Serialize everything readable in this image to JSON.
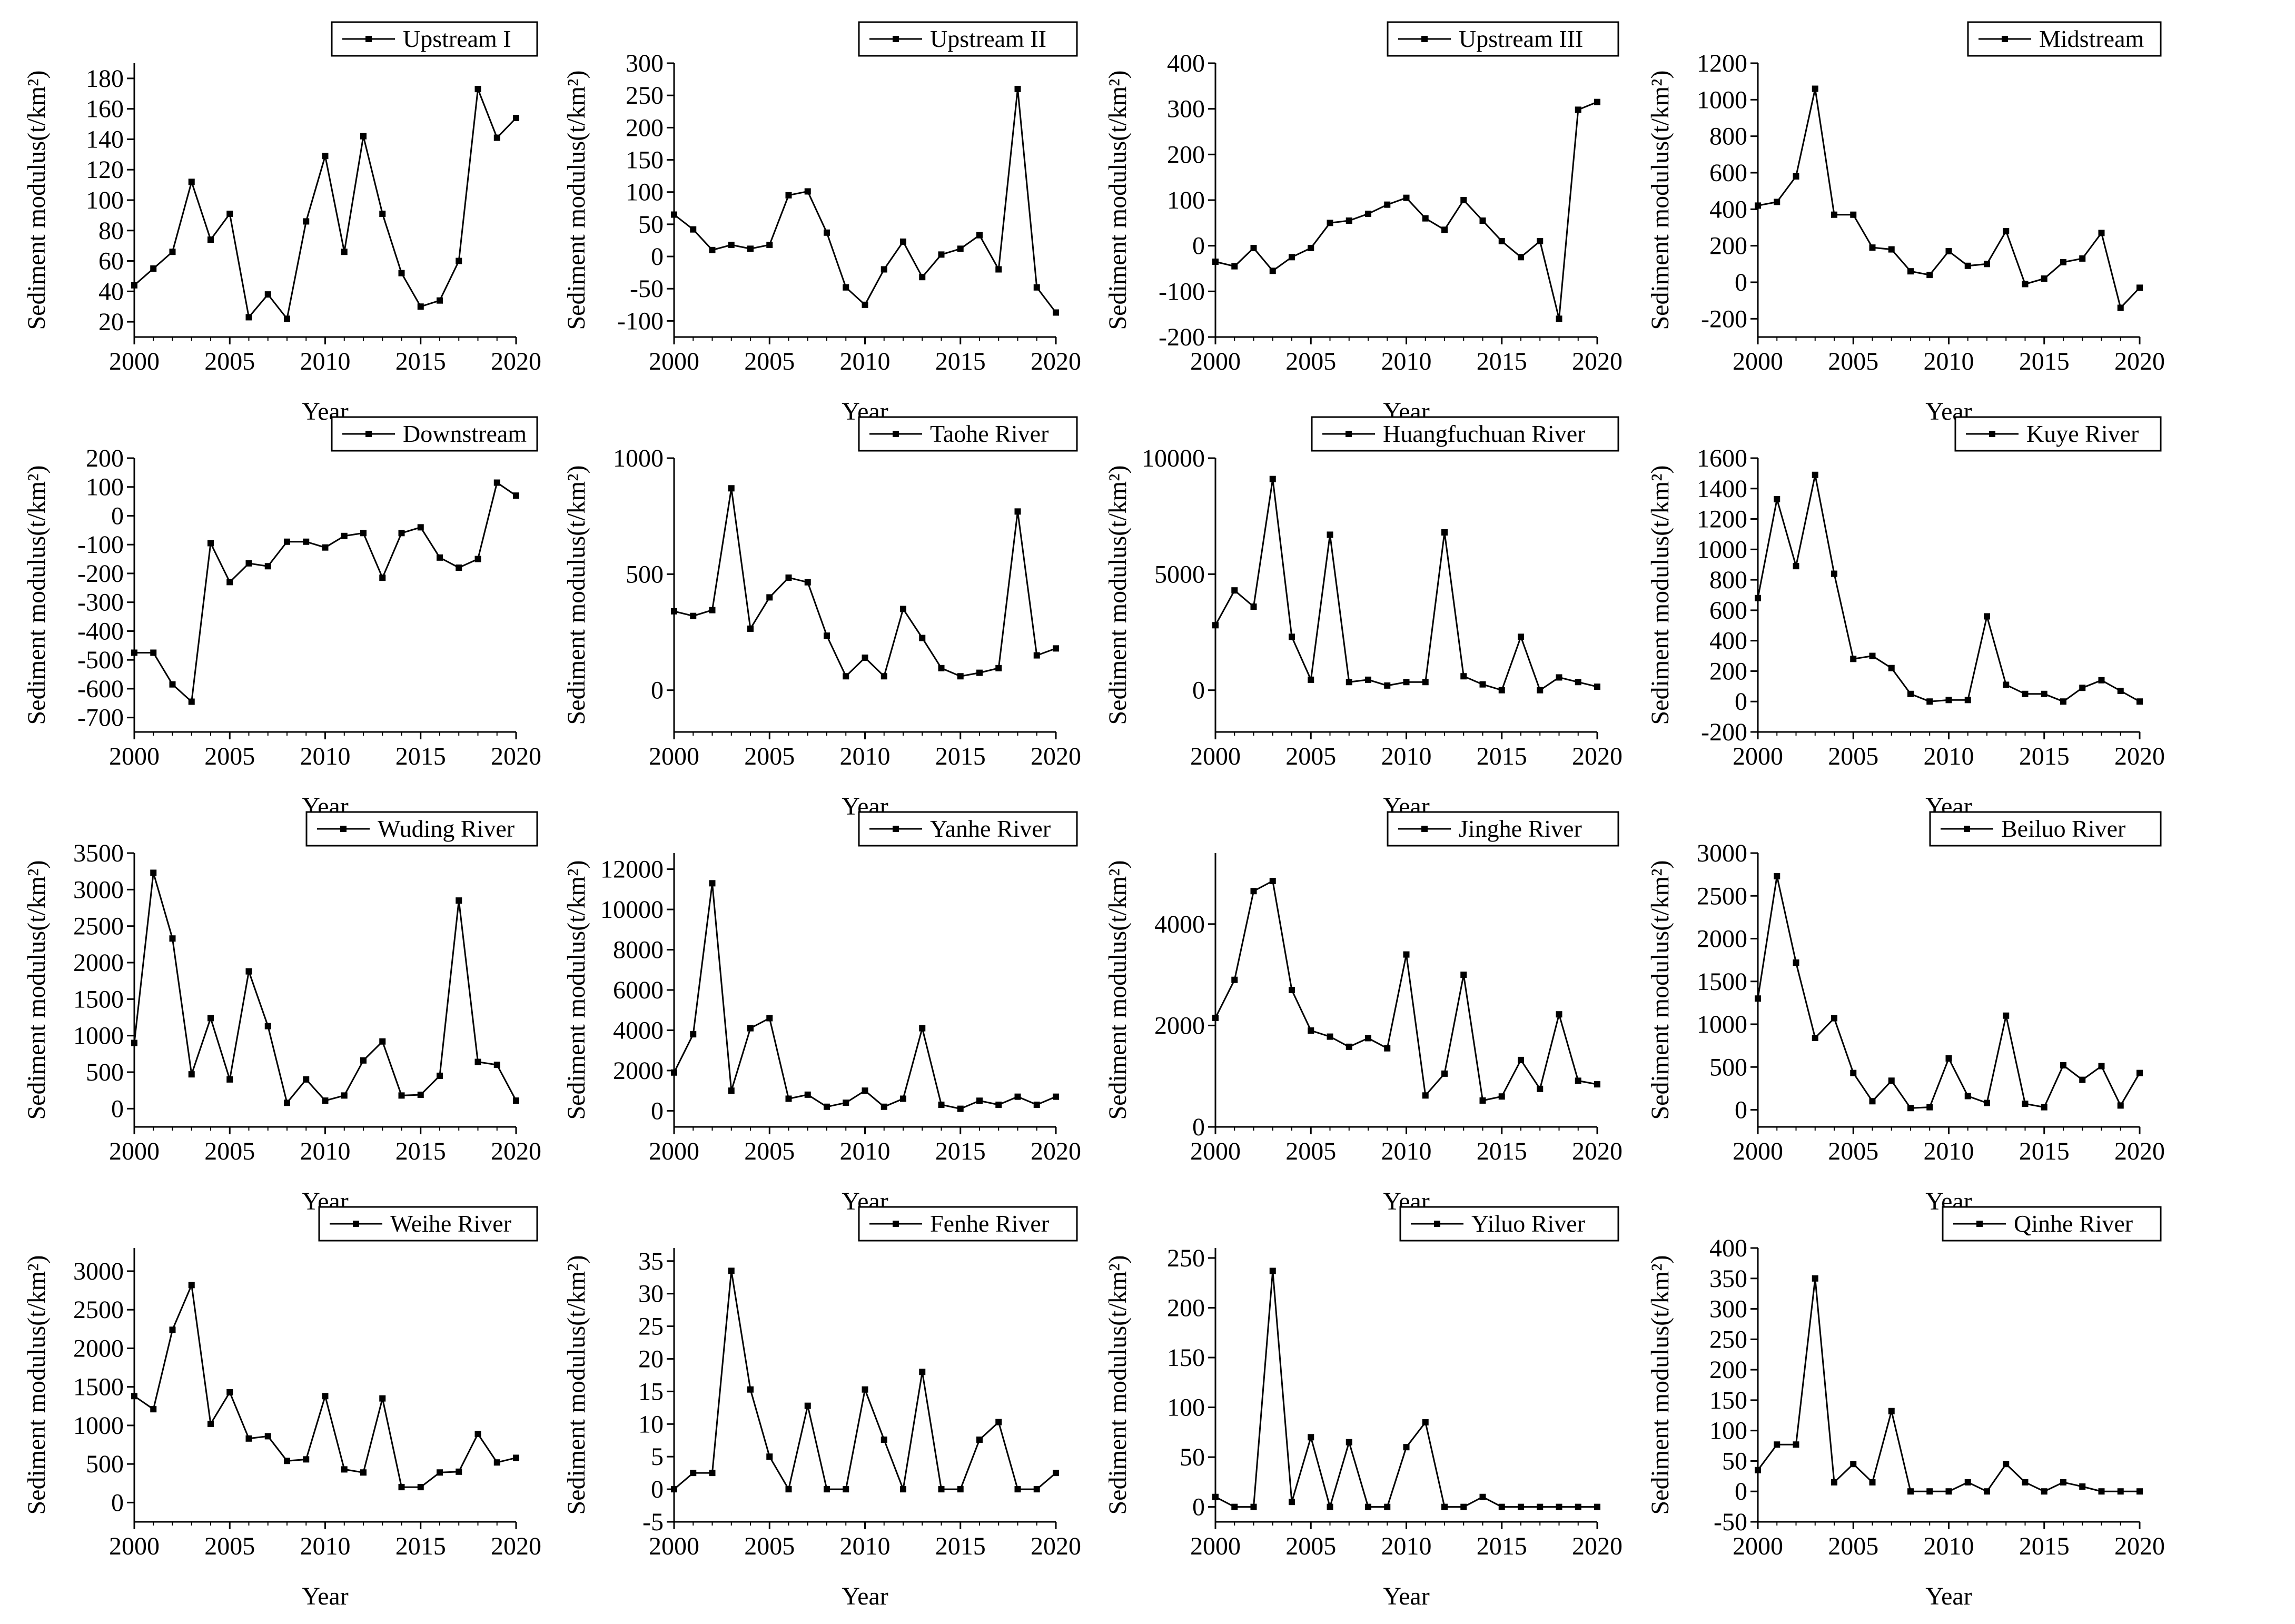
{
  "chart_data": [
    {
      "type": "line",
      "title": "Upstream I",
      "legend": "Upstream I",
      "xlabel": "Year",
      "ylabel": "Sediment modulus(t/km²)",
      "xlim": [
        2000,
        2020
      ],
      "xticks": [
        2000,
        2005,
        2010,
        2015,
        2020
      ],
      "ylim": [
        10,
        190
      ],
      "yticks": [
        20,
        40,
        60,
        80,
        100,
        120,
        140,
        160,
        180
      ],
      "x": [
        2000,
        2001,
        2002,
        2003,
        2004,
        2005,
        2006,
        2007,
        2008,
        2009,
        2010,
        2011,
        2012,
        2013,
        2014,
        2015,
        2016,
        2017,
        2018,
        2019,
        2020
      ],
      "values": [
        44,
        55,
        66,
        112,
        74,
        91,
        23,
        38,
        22,
        86,
        129,
        66,
        142,
        91,
        52,
        30,
        34,
        60,
        173,
        141,
        154
      ]
    },
    {
      "type": "line",
      "title": "Upstream II",
      "legend": "Upstream II",
      "xlabel": "Year",
      "ylabel": "Sediment modulus(t/km²)",
      "xlim": [
        2000,
        2020
      ],
      "xticks": [
        2000,
        2005,
        2010,
        2015,
        2020
      ],
      "ylim": [
        -125,
        300
      ],
      "yticks": [
        -100,
        -50,
        0,
        50,
        100,
        150,
        200,
        250,
        300
      ],
      "x": [
        2000,
        2001,
        2002,
        2003,
        2004,
        2005,
        2006,
        2007,
        2008,
        2009,
        2010,
        2011,
        2012,
        2013,
        2014,
        2015,
        2016,
        2017,
        2018,
        2019,
        2020
      ],
      "values": [
        65,
        42,
        10,
        18,
        12,
        18,
        95,
        101,
        37,
        -48,
        -75,
        -20,
        23,
        -32,
        3,
        12,
        33,
        -20,
        260,
        -48,
        -87
      ]
    },
    {
      "type": "line",
      "title": "Upstream III",
      "legend": "Upstream III",
      "xlabel": "Year",
      "ylabel": "Sediment modulus(t/km²)",
      "xlim": [
        2000,
        2020
      ],
      "xticks": [
        2000,
        2005,
        2010,
        2015,
        2020
      ],
      "ylim": [
        -200,
        400
      ],
      "yticks": [
        -200,
        -100,
        0,
        100,
        200,
        300,
        400
      ],
      "x": [
        2000,
        2001,
        2002,
        2003,
        2004,
        2005,
        2006,
        2007,
        2008,
        2009,
        2010,
        2011,
        2012,
        2013,
        2014,
        2015,
        2016,
        2017,
        2018,
        2019,
        2020
      ],
      "values": [
        -35,
        -45,
        -5,
        -55,
        -25,
        -5,
        50,
        55,
        70,
        90,
        105,
        60,
        35,
        100,
        55,
        10,
        -25,
        10,
        -160,
        298,
        315
      ]
    },
    {
      "type": "line",
      "title": "Midstream",
      "legend": "Midstream",
      "xlabel": "Year",
      "ylabel": "Sediment modulus(t/km²)",
      "xlim": [
        2000,
        2020
      ],
      "xticks": [
        2000,
        2005,
        2010,
        2015,
        2020
      ],
      "ylim": [
        -300,
        1200
      ],
      "yticks": [
        -200,
        0,
        200,
        400,
        600,
        800,
        1000,
        1200
      ],
      "x": [
        2000,
        2001,
        2002,
        2003,
        2004,
        2005,
        2006,
        2007,
        2008,
        2009,
        2010,
        2011,
        2012,
        2013,
        2014,
        2015,
        2016,
        2017,
        2018,
        2019,
        2020
      ],
      "values": [
        420,
        440,
        580,
        1060,
        370,
        370,
        190,
        180,
        60,
        40,
        170,
        90,
        100,
        280,
        -10,
        20,
        110,
        130,
        270,
        -140,
        -30
      ]
    },
    {
      "type": "line",
      "title": "Downstream",
      "legend": "Downstream",
      "xlabel": "Year",
      "ylabel": "Sediment modulus(t/km²)",
      "xlim": [
        2000,
        2020
      ],
      "xticks": [
        2000,
        2005,
        2010,
        2015,
        2020
      ],
      "ylim": [
        -750,
        200
      ],
      "yticks": [
        -700,
        -600,
        -500,
        -400,
        -300,
        -200,
        -100,
        0,
        100,
        200
      ],
      "x": [
        2000,
        2001,
        2002,
        2003,
        2004,
        2005,
        2006,
        2007,
        2008,
        2009,
        2010,
        2011,
        2012,
        2013,
        2014,
        2015,
        2016,
        2017,
        2018,
        2019,
        2020
      ],
      "values": [
        -475,
        -475,
        -585,
        -645,
        -95,
        -230,
        -165,
        -175,
        -90,
        -90,
        -110,
        -70,
        -60,
        -215,
        -60,
        -40,
        -145,
        -180,
        -150,
        115,
        70
      ]
    },
    {
      "type": "line",
      "title": "Taohe River",
      "legend": "Taohe River",
      "xlabel": "Year",
      "ylabel": "Sediment modulus(t/km²)",
      "xlim": [
        2000,
        2020
      ],
      "xticks": [
        2000,
        2005,
        2010,
        2015,
        2020
      ],
      "ylim": [
        -180,
        1000
      ],
      "yticks": [
        0,
        500,
        1000
      ],
      "x": [
        2000,
        2001,
        2002,
        2003,
        2004,
        2005,
        2006,
        2007,
        2008,
        2009,
        2010,
        2011,
        2012,
        2013,
        2014,
        2015,
        2016,
        2017,
        2018,
        2019,
        2020
      ],
      "values": [
        340,
        320,
        345,
        870,
        265,
        400,
        485,
        465,
        235,
        60,
        140,
        60,
        350,
        225,
        95,
        60,
        75,
        95,
        770,
        150,
        180
      ]
    },
    {
      "type": "line",
      "title": "Huangfuchuan River",
      "legend": "Huangfuchuan River",
      "xlabel": "Year",
      "ylabel": "Sediment modulus(t/km²)",
      "xlim": [
        2000,
        2020
      ],
      "xticks": [
        2000,
        2005,
        2010,
        2015,
        2020
      ],
      "ylim": [
        -1800,
        10000
      ],
      "yticks": [
        0,
        5000,
        10000
      ],
      "x": [
        2000,
        2001,
        2002,
        2003,
        2004,
        2005,
        2006,
        2007,
        2008,
        2009,
        2010,
        2011,
        2012,
        2013,
        2014,
        2015,
        2016,
        2017,
        2018,
        2019,
        2020
      ],
      "values": [
        2800,
        4300,
        3600,
        9100,
        2300,
        450,
        6700,
        350,
        450,
        200,
        350,
        350,
        6800,
        600,
        250,
        0,
        2300,
        0,
        550,
        350,
        150
      ]
    },
    {
      "type": "line",
      "title": "Kuye River",
      "legend": "Kuye River",
      "xlabel": "Year",
      "ylabel": "Sediment modulus(t/km²)",
      "xlim": [
        2000,
        2020
      ],
      "xticks": [
        2000,
        2005,
        2010,
        2015,
        2020
      ],
      "ylim": [
        -200,
        1600
      ],
      "yticks": [
        -200,
        0,
        200,
        400,
        600,
        800,
        1000,
        1200,
        1400,
        1600
      ],
      "x": [
        2000,
        2001,
        2002,
        2003,
        2004,
        2005,
        2006,
        2007,
        2008,
        2009,
        2010,
        2011,
        2012,
        2013,
        2014,
        2015,
        2016,
        2017,
        2018,
        2019,
        2020
      ],
      "values": [
        680,
        1330,
        890,
        1490,
        840,
        280,
        300,
        220,
        50,
        0,
        10,
        10,
        560,
        110,
        50,
        50,
        0,
        90,
        140,
        70,
        0
      ]
    },
    {
      "type": "line",
      "title": "Wuding River",
      "legend": "Wuding River",
      "xlabel": "Year",
      "ylabel": "Sediment modulus(t/km²)",
      "xlim": [
        2000,
        2020
      ],
      "xticks": [
        2000,
        2005,
        2010,
        2015,
        2020
      ],
      "ylim": [
        -250,
        3500
      ],
      "yticks": [
        0,
        500,
        1000,
        1500,
        2000,
        2500,
        3000,
        3500
      ],
      "x": [
        2000,
        2001,
        2002,
        2003,
        2004,
        2005,
        2006,
        2007,
        2008,
        2009,
        2010,
        2011,
        2012,
        2013,
        2014,
        2015,
        2016,
        2017,
        2018,
        2019,
        2020
      ],
      "values": [
        900,
        3230,
        2330,
        470,
        1240,
        400,
        1880,
        1130,
        80,
        400,
        110,
        180,
        660,
        920,
        180,
        190,
        450,
        2850,
        640,
        600,
        110
      ]
    },
    {
      "type": "line",
      "title": "Yanhe River",
      "legend": "Yanhe River",
      "xlabel": "Year",
      "ylabel": "Sediment modulus(t/km²)",
      "xlim": [
        2000,
        2020
      ],
      "xticks": [
        2000,
        2005,
        2010,
        2015,
        2020
      ],
      "ylim": [
        -800,
        12800
      ],
      "yticks": [
        0,
        2000,
        4000,
        6000,
        8000,
        10000,
        12000
      ],
      "x": [
        2000,
        2001,
        2002,
        2003,
        2004,
        2005,
        2006,
        2007,
        2008,
        2009,
        2010,
        2011,
        2012,
        2013,
        2014,
        2015,
        2016,
        2017,
        2018,
        2019,
        2020
      ],
      "values": [
        1900,
        3800,
        11300,
        1000,
        4100,
        4600,
        600,
        800,
        200,
        400,
        1000,
        200,
        600,
        4100,
        300,
        100,
        500,
        300,
        700,
        300,
        700
      ]
    },
    {
      "type": "line",
      "title": "Jinghe River",
      "legend": "Jinghe River",
      "xlabel": "Year",
      "ylabel": "Sediment modulus(t/km²)",
      "xlim": [
        2000,
        2020
      ],
      "xticks": [
        2000,
        2005,
        2010,
        2015,
        2020
      ],
      "ylim": [
        0,
        5400
      ],
      "yticks": [
        0,
        2000,
        4000
      ],
      "x": [
        2000,
        2001,
        2002,
        2003,
        2004,
        2005,
        2006,
        2007,
        2008,
        2009,
        2010,
        2011,
        2012,
        2013,
        2014,
        2015,
        2016,
        2017,
        2018,
        2019,
        2020
      ],
      "values": [
        2150,
        2900,
        4650,
        4850,
        2700,
        1900,
        1780,
        1580,
        1750,
        1550,
        3400,
        620,
        1050,
        3000,
        520,
        600,
        1320,
        750,
        2220,
        910,
        840
      ]
    },
    {
      "type": "line",
      "title": "Beiluo River",
      "legend": "Beiluo River",
      "xlabel": "Year",
      "ylabel": "Sediment modulus(t/km²)",
      "xlim": [
        2000,
        2020
      ],
      "xticks": [
        2000,
        2005,
        2010,
        2015,
        2020
      ],
      "ylim": [
        -200,
        3000
      ],
      "yticks": [
        0,
        500,
        1000,
        1500,
        2000,
        2500,
        3000
      ],
      "x": [
        2000,
        2001,
        2002,
        2003,
        2004,
        2005,
        2006,
        2007,
        2008,
        2009,
        2010,
        2011,
        2012,
        2013,
        2014,
        2015,
        2016,
        2017,
        2018,
        2019,
        2020
      ],
      "values": [
        1300,
        2730,
        1720,
        840,
        1070,
        430,
        100,
        340,
        20,
        30,
        600,
        160,
        80,
        1100,
        70,
        30,
        520,
        350,
        510,
        50,
        430
      ]
    },
    {
      "type": "line",
      "title": "Weihe River",
      "legend": "Weihe River",
      "xlabel": "Year",
      "ylabel": "Sediment modulus(t/km²)",
      "xlim": [
        2000,
        2020
      ],
      "xticks": [
        2000,
        2005,
        2010,
        2015,
        2020
      ],
      "ylim": [
        -250,
        3300
      ],
      "yticks": [
        0,
        500,
        1000,
        1500,
        2000,
        2500,
        3000
      ],
      "x": [
        2000,
        2001,
        2002,
        2003,
        2004,
        2005,
        2006,
        2007,
        2008,
        2009,
        2010,
        2011,
        2012,
        2013,
        2014,
        2015,
        2016,
        2017,
        2018,
        2019,
        2020
      ],
      "values": [
        1380,
        1210,
        2240,
        2820,
        1020,
        1430,
        830,
        860,
        540,
        560,
        1380,
        430,
        390,
        1350,
        200,
        200,
        390,
        400,
        890,
        520,
        580
      ]
    },
    {
      "type": "line",
      "title": "Fenhe River",
      "legend": "Fenhe River",
      "xlabel": "Year",
      "ylabel": "Sediment modulus(t/km²)",
      "xlim": [
        2000,
        2020
      ],
      "xticks": [
        2000,
        2005,
        2010,
        2015,
        2020
      ],
      "ylim": [
        -5,
        37
      ],
      "yticks": [
        -5,
        0,
        5,
        10,
        15,
        20,
        25,
        30,
        35
      ],
      "x": [
        2000,
        2001,
        2002,
        2003,
        2004,
        2005,
        2006,
        2007,
        2008,
        2009,
        2010,
        2011,
        2012,
        2013,
        2014,
        2015,
        2016,
        2017,
        2018,
        2019,
        2020
      ],
      "values": [
        0,
        2.5,
        2.5,
        33.5,
        15.3,
        5,
        0,
        12.8,
        0,
        0,
        15.3,
        7.6,
        0,
        18,
        0,
        0,
        7.6,
        10.3,
        0,
        0,
        2.5
      ]
    },
    {
      "type": "line",
      "title": "Yiluo River",
      "legend": "Yiluo River",
      "xlabel": "Year",
      "ylabel": "Sediment modulus(t/km²)",
      "xlim": [
        2000,
        2020
      ],
      "xticks": [
        2000,
        2005,
        2010,
        2015,
        2020
      ],
      "ylim": [
        -15,
        260
      ],
      "yticks": [
        0,
        50,
        100,
        150,
        200,
        250
      ],
      "x": [
        2000,
        2001,
        2002,
        2003,
        2004,
        2005,
        2006,
        2007,
        2008,
        2009,
        2010,
        2011,
        2012,
        2013,
        2014,
        2015,
        2016,
        2017,
        2018,
        2019,
        2020
      ],
      "values": [
        10,
        0,
        0,
        237,
        5,
        70,
        0,
        65,
        0,
        0,
        60,
        85,
        0,
        0,
        10,
        0,
        0,
        0,
        0,
        0,
        0
      ]
    },
    {
      "type": "line",
      "title": "Qinhe River",
      "legend": "Qinhe River",
      "xlabel": "Year",
      "ylabel": "Sediment modulus(t/km²)",
      "xlim": [
        2000,
        2020
      ],
      "xticks": [
        2000,
        2005,
        2010,
        2015,
        2020
      ],
      "ylim": [
        -50,
        400
      ],
      "yticks": [
        -50,
        0,
        50,
        100,
        150,
        200,
        250,
        300,
        350,
        400
      ],
      "x": [
        2000,
        2001,
        2002,
        2003,
        2004,
        2005,
        2006,
        2007,
        2008,
        2009,
        2010,
        2011,
        2012,
        2013,
        2014,
        2015,
        2016,
        2017,
        2018,
        2019,
        2020
      ],
      "values": [
        35,
        77,
        77,
        350,
        15,
        45,
        15,
        132,
        0,
        0,
        0,
        15,
        0,
        45,
        15,
        0,
        15,
        8,
        0,
        0,
        0
      ]
    }
  ]
}
